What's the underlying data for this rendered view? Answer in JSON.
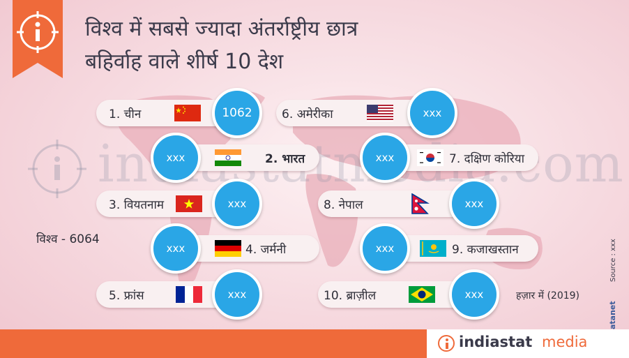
{
  "title_lines": [
    "विश्व में सबसे ज्यादा अंतर्राष्ट्रीय छात्र",
    "बहिर्वाह वाले शीर्ष 10 देश"
  ],
  "watermark": "indiastatmedia.com",
  "world_total": "विश्व - 6064",
  "unit_note": "हज़ार में (2019)",
  "source_note": "Source : xxx",
  "copyright": "© Datanet",
  "footer": {
    "brand_bold": "indiastat",
    "brand_light": "media"
  },
  "colors": {
    "bubble": "#2aa6e6",
    "accent": "#ef6a3a",
    "pill": "#f9f0f1"
  },
  "chart_data": {
    "type": "table",
    "title": "विश्व में सबसे ज्यादा अंतर्राष्ट्रीय छात्र बहिर्वाह वाले शीर्ष 10 देश",
    "unit": "हज़ार में (2019)",
    "total": {
      "label": "विश्व",
      "value": 6064
    },
    "rows": [
      {
        "rank": 1,
        "label": "1. चीन",
        "value": "1062",
        "flag": "china-flag"
      },
      {
        "rank": 2,
        "label": "2. भारत",
        "value": "xxx",
        "flag": "india-flag"
      },
      {
        "rank": 3,
        "label": "3. वियतनाम",
        "value": "xxx",
        "flag": "vietnam-flag"
      },
      {
        "rank": 4,
        "label": "4. जर्मनी",
        "value": "xxx",
        "flag": "germany-flag"
      },
      {
        "rank": 5,
        "label": "5. फ्रांस",
        "value": "xxx",
        "flag": "france-flag"
      },
      {
        "rank": 6,
        "label": "6. अमेरीका",
        "value": "xxx",
        "flag": "usa-flag"
      },
      {
        "rank": 7,
        "label": "7. दक्षिण कोरिया",
        "value": "xxx",
        "flag": "south-korea-flag"
      },
      {
        "rank": 8,
        "label": "8. नेपाल",
        "value": "xxx",
        "flag": "nepal-flag"
      },
      {
        "rank": 9,
        "label": "9. कजाखस्तान",
        "value": "xxx",
        "flag": "kazakhstan-flag"
      },
      {
        "rank": 10,
        "label": "10. ब्राज़ील",
        "value": "xxx",
        "flag": "brazil-flag"
      }
    ]
  }
}
